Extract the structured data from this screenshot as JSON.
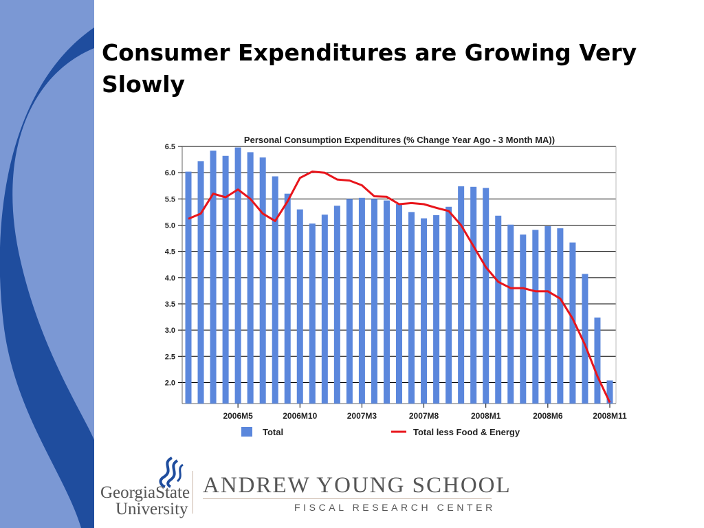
{
  "slide": {
    "title": "Consumer Expenditures are Growing Very Slowly"
  },
  "colors": {
    "side_band": "#7b98d4",
    "side_swoosh": "#1f4d9e",
    "bar": "#5b87dc",
    "line": "#e8151b",
    "grid": "#000000",
    "logo_mark": "#1f4d9e"
  },
  "chart_data": {
    "type": "bar",
    "title": "Personal Consumption Expenditures (% Change Year Ago - 3 Month MA))",
    "ylim": [
      1.6,
      6.5
    ],
    "yticks": [
      2.0,
      2.5,
      3.0,
      3.5,
      4.0,
      4.5,
      5.0,
      5.5,
      6.0,
      6.5
    ],
    "grid": true,
    "legend_position": "bottom",
    "xticklabels": [
      {
        "index": 4,
        "label": "2006M5"
      },
      {
        "index": 9,
        "label": "2006M10"
      },
      {
        "index": 14,
        "label": "2007M3"
      },
      {
        "index": 19,
        "label": "2007M8"
      },
      {
        "index": 24,
        "label": "2008M1"
      },
      {
        "index": 29,
        "label": "2008M6"
      },
      {
        "index": 34,
        "label": "2008M11"
      }
    ],
    "series": [
      {
        "name": "Total",
        "type": "bar",
        "values": [
          6.02,
          6.22,
          6.42,
          6.32,
          6.48,
          6.39,
          6.29,
          5.93,
          5.6,
          5.3,
          5.03,
          5.2,
          5.37,
          5.5,
          5.52,
          5.5,
          5.47,
          5.4,
          5.25,
          5.13,
          5.19,
          5.35,
          5.74,
          5.73,
          5.71,
          5.18,
          5.01,
          4.82,
          4.91,
          4.98,
          4.94,
          4.67,
          4.07,
          3.24,
          2.04
        ]
      },
      {
        "name": "Total less Food & Energy",
        "type": "line",
        "values": [
          5.12,
          5.22,
          5.6,
          5.53,
          5.68,
          5.5,
          5.22,
          5.08,
          5.45,
          5.9,
          6.02,
          6.0,
          5.87,
          5.85,
          5.76,
          5.55,
          5.54,
          5.4,
          5.42,
          5.4,
          5.33,
          5.27,
          5.0,
          4.6,
          4.2,
          3.92,
          3.8,
          3.8,
          3.74,
          3.74,
          3.6,
          3.22,
          2.72,
          2.12,
          1.62
        ]
      }
    ]
  },
  "logo": {
    "university_line1": "GeorgiaState",
    "university_line2": "University",
    "school_name": "ANDREW YOUNG SCHOOL",
    "school_subtitle": "FISCAL RESEARCH CENTER"
  }
}
